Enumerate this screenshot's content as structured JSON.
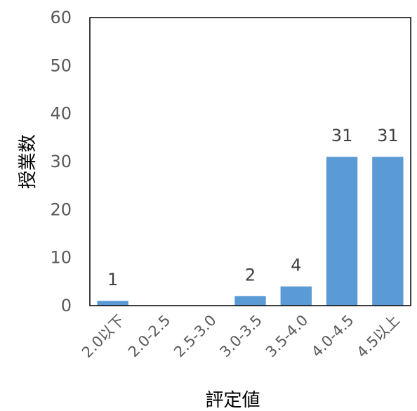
{
  "chart_data": {
    "type": "bar",
    "categories": [
      "2.0以下",
      "2.0-2.5",
      "2.5-3.0",
      "3.0-3.5",
      "3.5-4.0",
      "4.0-4.5",
      "4.5以上"
    ],
    "values": [
      1,
      0,
      0,
      2,
      4,
      31,
      31
    ],
    "data_labels": [
      "1",
      "",
      "",
      "2",
      "4",
      "31",
      "31"
    ],
    "title": "",
    "xlabel": "評定値",
    "ylabel": "授業数",
    "ylim": [
      0,
      60
    ],
    "yticks": [
      0,
      10,
      20,
      30,
      40,
      50,
      60
    ],
    "grid": false,
    "legend": "none",
    "bar_color": "#5b9bd5",
    "axis_color": "#000000",
    "text_color": "#595959"
  }
}
